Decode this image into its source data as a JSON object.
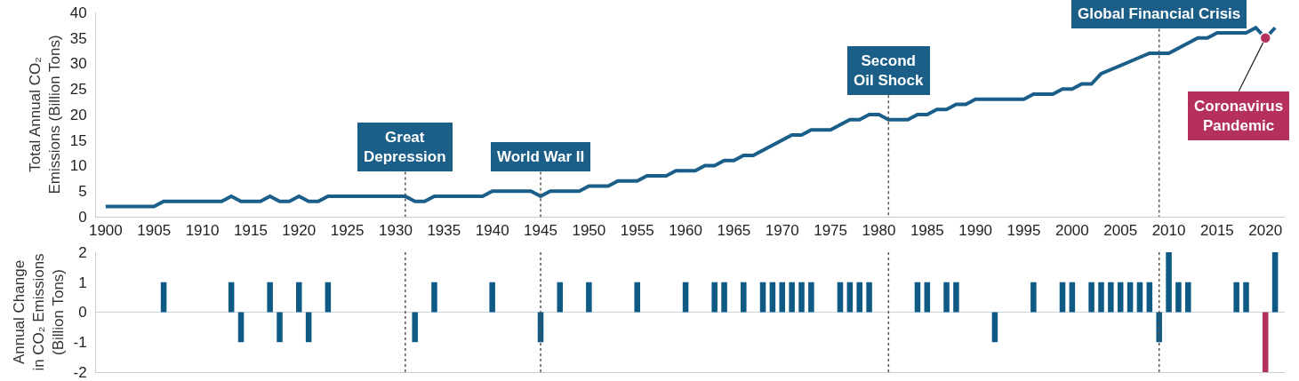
{
  "chart_data": [
    {
      "type": "line",
      "ylabel": "Total Annual CO₂\nEmissions (Billion Tons)",
      "xlim": [
        1899,
        2022
      ],
      "xticks": [
        1900,
        1905,
        1910,
        1915,
        1920,
        1925,
        1930,
        1935,
        1940,
        1945,
        1950,
        1955,
        1960,
        1965,
        1970,
        1975,
        1980,
        1985,
        1990,
        1995,
        2000,
        2005,
        2010,
        2015,
        2020
      ],
      "ylim": [
        0,
        40
      ],
      "yticks": [
        0,
        5,
        10,
        15,
        20,
        25,
        30,
        35,
        40
      ],
      "grid": false,
      "legend": false,
      "marker": "none",
      "line_style": "solid",
      "series": [
        {
          "color": "#1a5f8a",
          "x": [
            1900,
            1905,
            1906,
            1912,
            1913,
            1914,
            1916,
            1917,
            1918,
            1919,
            1920,
            1921,
            1922,
            1923,
            1931,
            1932,
            1933,
            1934,
            1939,
            1940,
            1944,
            1945,
            1946,
            1949,
            1950,
            1952,
            1953,
            1955,
            1956,
            1958,
            1959,
            1961,
            1962,
            1963,
            1964,
            1965,
            1966,
            1967,
            1971,
            1972,
            1973,
            1975,
            1977,
            1978,
            1979,
            1980,
            1981,
            1983,
            1984,
            1985,
            1986,
            1987,
            1988,
            1989,
            1990,
            1995,
            1996,
            1998,
            1999,
            2000,
            2001,
            2002,
            2003,
            2008,
            2010,
            2013,
            2014,
            2015,
            2018,
            2019,
            2020,
            2021
          ],
          "values": [
            2,
            2,
            3,
            3,
            4,
            3,
            3,
            4,
            3,
            3,
            4,
            3,
            3,
            4,
            4,
            3,
            3,
            4,
            4,
            5,
            5,
            4,
            5,
            5,
            6,
            6,
            7,
            7,
            8,
            8,
            9,
            9,
            10,
            10,
            11,
            11,
            12,
            12,
            16,
            16,
            17,
            17,
            19,
            19,
            20,
            20,
            19,
            19,
            20,
            20,
            21,
            21,
            22,
            22,
            23,
            23,
            24,
            24,
            25,
            25,
            26,
            26,
            28,
            32,
            32,
            35,
            35,
            36,
            36,
            37,
            35,
            37
          ]
        }
      ],
      "ref_lines": [
        {
          "axis": "x",
          "value": 1931,
          "label": "Great\nDepression",
          "color": "#555555",
          "line_style": "dotted"
        },
        {
          "axis": "x",
          "value": 1945,
          "label": "World War II",
          "color": "#555555",
          "line_style": "dotted"
        },
        {
          "axis": "x",
          "value": 1981,
          "label": "Second\nOil Shock",
          "color": "#555555",
          "line_style": "dotted"
        },
        {
          "axis": "x",
          "value": 2009,
          "label": "Global Financial Crisis",
          "color": "#555555",
          "line_style": "dotted"
        }
      ],
      "annotations": [
        {
          "text": "Coronavirus\nPandemic",
          "x": 2020,
          "y": 35
        }
      ]
    },
    {
      "type": "bar",
      "ylabel": "Annual Change\nin CO₂ Emissions\n(Billion Tons)",
      "xlim": [
        1899,
        2022
      ],
      "ylim": [
        -2,
        2
      ],
      "yticks": [
        -2,
        -1,
        0,
        1,
        2
      ],
      "tick_labels": "y",
      "grid": false,
      "legend": false,
      "x": [
        1906,
        1913,
        1914,
        1917,
        1918,
        1920,
        1921,
        1923,
        1932,
        1934,
        1940,
        1945,
        1947,
        1950,
        1955,
        1960,
        1963,
        1964,
        1966,
        1968,
        1969,
        1970,
        1971,
        1972,
        1973,
        1976,
        1977,
        1978,
        1979,
        1984,
        1985,
        1987,
        1988,
        1992,
        1996,
        1999,
        2000,
        2002,
        2003,
        2004,
        2005,
        2006,
        2007,
        2008,
        2009,
        2010,
        2011,
        2012,
        2017,
        2018,
        2020,
        2021
      ],
      "values": [
        1,
        1,
        -1,
        1,
        -1,
        1,
        -1,
        1,
        -1,
        1,
        1,
        -1,
        1,
        1,
        1,
        1,
        1,
        1,
        1,
        1,
        1,
        1,
        1,
        1,
        1,
        1,
        1,
        1,
        1,
        1,
        1,
        1,
        1,
        -1,
        1,
        1,
        1,
        1,
        1,
        1,
        1,
        1,
        1,
        1,
        -1,
        2,
        1,
        1,
        1,
        1,
        -2,
        2
      ],
      "colors": [
        "#0e5a85",
        "#0e5a85",
        "#0e5a85",
        "#0e5a85",
        "#0e5a85",
        "#0e5a85",
        "#0e5a85",
        "#0e5a85",
        "#0e5a85",
        "#0e5a85",
        "#0e5a85",
        "#0e5a85",
        "#0e5a85",
        "#0e5a85",
        "#0e5a85",
        "#0e5a85",
        "#0e5a85",
        "#0e5a85",
        "#0e5a85",
        "#0e5a85",
        "#0e5a85",
        "#0e5a85",
        "#0e5a85",
        "#0e5a85",
        "#0e5a85",
        "#0e5a85",
        "#0e5a85",
        "#0e5a85",
        "#0e5a85",
        "#0e5a85",
        "#0e5a85",
        "#0e5a85",
        "#0e5a85",
        "#0e5a85",
        "#0e5a85",
        "#0e5a85",
        "#0e5a85",
        "#0e5a85",
        "#0e5a85",
        "#0e5a85",
        "#0e5a85",
        "#0e5a85",
        "#0e5a85",
        "#0e5a85",
        "#0e5a85",
        "#0e5a85",
        "#0e5a85",
        "#0e5a85",
        "#0e5a85",
        "#0e5a85",
        "#b5305f",
        "#0e5a85"
      ],
      "ref_lines": [
        {
          "axis": "x",
          "value": 1931,
          "color": "#555555",
          "line_style": "dotted"
        },
        {
          "axis": "x",
          "value": 1945,
          "color": "#555555",
          "line_style": "dotted"
        },
        {
          "axis": "x",
          "value": 1981,
          "color": "#555555",
          "line_style": "dotted"
        },
        {
          "axis": "x",
          "value": 2009,
          "color": "#555555",
          "line_style": "dotted"
        }
      ]
    }
  ]
}
